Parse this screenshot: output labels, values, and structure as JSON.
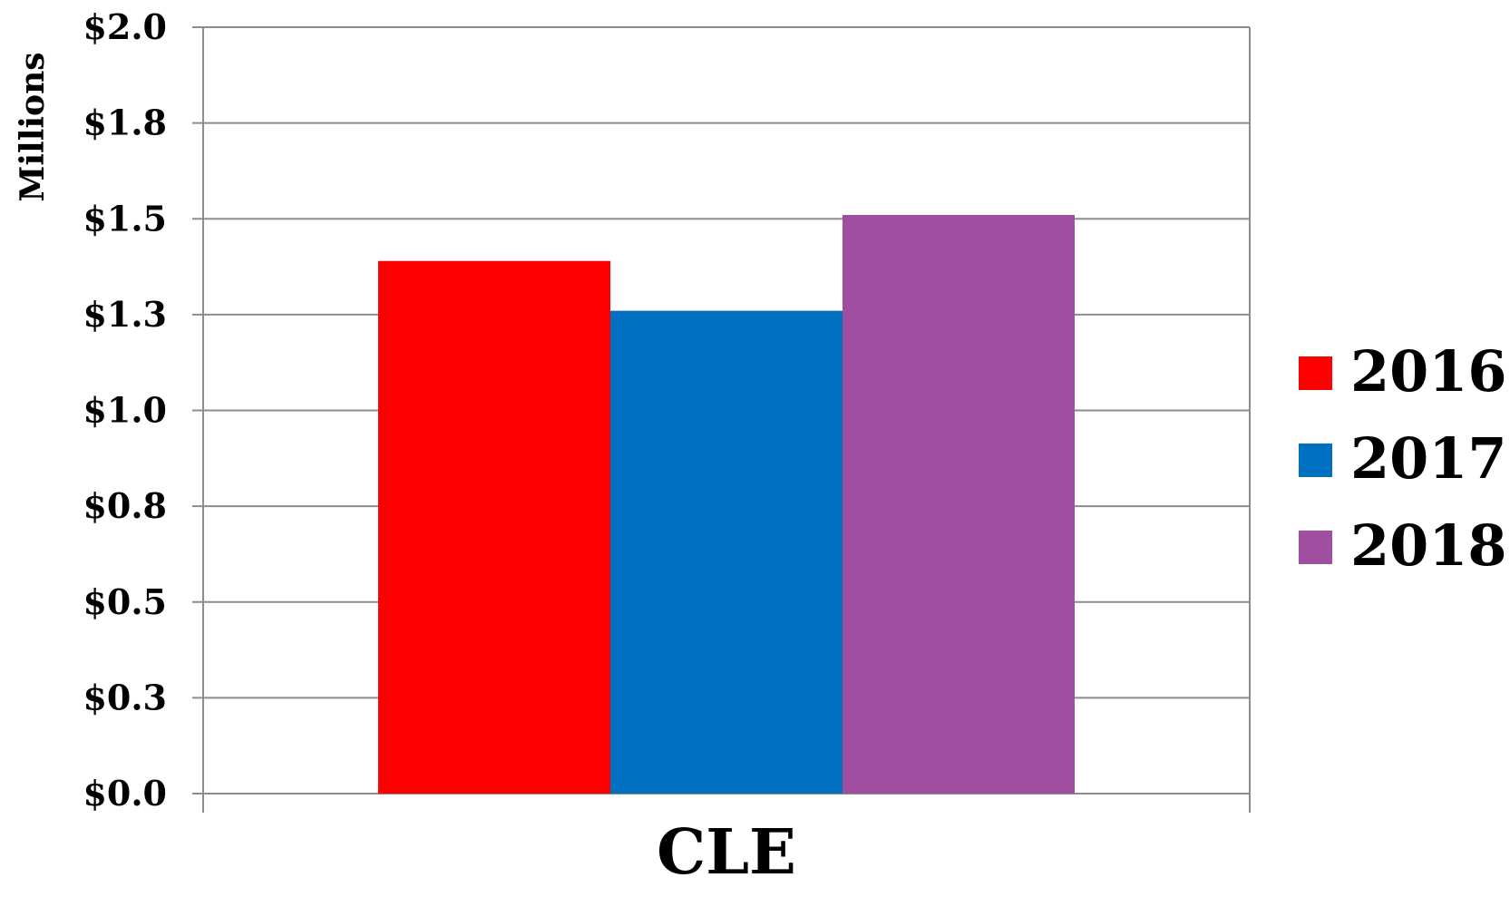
{
  "chart_data": {
    "type": "bar",
    "categories": [
      "CLE"
    ],
    "series": [
      {
        "name": "2016",
        "values": [
          1.39
        ],
        "color": "#ff0000"
      },
      {
        "name": "2017",
        "values": [
          1.26
        ],
        "color": "#0070c0"
      },
      {
        "name": "2018",
        "values": [
          1.51
        ],
        "color": "#a04ea0"
      }
    ],
    "ylim": [
      0,
      2
    ],
    "yticks": [
      0,
      0.25,
      0.5,
      0.75,
      1.0,
      1.25,
      1.5,
      1.75,
      2.0
    ],
    "ytick_labels": [
      "$0.0",
      "$0.3",
      "$0.5",
      "$0.8",
      "$1.0",
      "$1.3",
      "$1.5",
      "$1.8",
      "$2.0"
    ],
    "ylabel": "Millions",
    "xlabel": "",
    "title": "",
    "grid": true,
    "legend_position": "right"
  }
}
